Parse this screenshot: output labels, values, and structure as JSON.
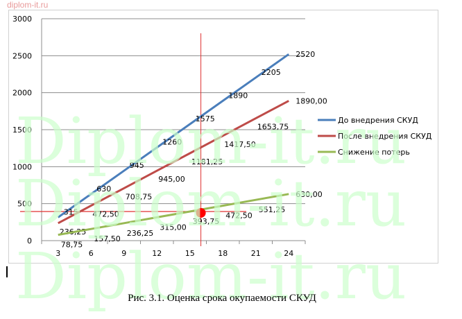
{
  "watermark_small": "diplom-it.ru",
  "watermark_big": "Diplom-it.ru",
  "caption": "Рис. 3.1. Оценка срока окупаемости СКУД",
  "chart_data": {
    "type": "line",
    "categories": [
      "3",
      "6",
      "9",
      "12",
      "15",
      "18",
      "21",
      "24"
    ],
    "ylim": [
      0,
      3000
    ],
    "yticks": [
      "0",
      "500",
      "1000",
      "1500",
      "2000",
      "2500",
      "3000"
    ],
    "grid": true,
    "legend": "right",
    "series": [
      {
        "name": "До внедрения  СКУД",
        "color": "#4a7ebb",
        "values": [
          315,
          630,
          945,
          1260,
          1575,
          1890,
          2205,
          2520
        ],
        "labels": [
          "315",
          "630",
          "945",
          "1260",
          "1575",
          "1890",
          "2205",
          "2520"
        ]
      },
      {
        "name": "После внедрения  СКУД",
        "color": "#be4b48",
        "values": [
          236.25,
          472.5,
          708.75,
          945,
          1181.25,
          1417.5,
          1653.75,
          1890
        ],
        "labels": [
          "236,25",
          "472,50",
          "708,75",
          "945,00",
          "1181,25",
          "1417,50",
          "1653,75",
          "1890,00"
        ]
      },
      {
        "name": "Снижение  потерь",
        "color": "#98b954",
        "values": [
          78.75,
          157.5,
          236.25,
          315,
          393.75,
          472.5,
          551.25,
          630
        ],
        "labels": [
          "78,75",
          "157,50",
          "236,25",
          "315,00",
          "393,75",
          "472,50",
          "551,25",
          "630,00"
        ]
      }
    ],
    "annotations": {
      "payback_x": 16,
      "payback_y": 394,
      "line_color": "#e03030",
      "point_color": "#ff0000"
    }
  }
}
